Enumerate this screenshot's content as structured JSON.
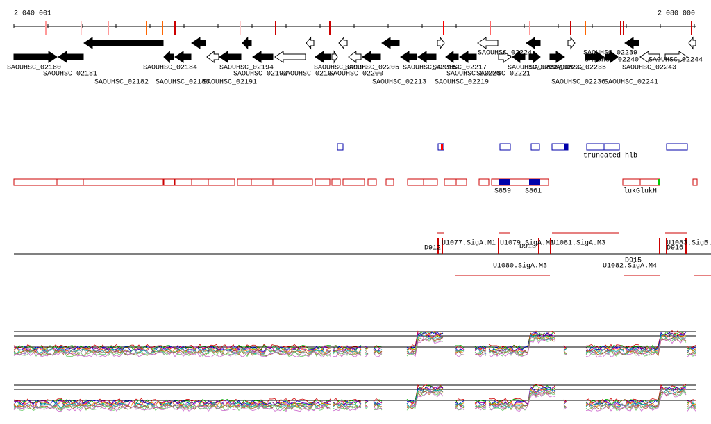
{
  "axis": {
    "start": "2 040 001",
    "end": "2 080 000"
  },
  "genes": [
    "SAOUHSC_02180",
    "SAOUHSC_02184",
    "SAOUHSC_02194",
    "SAOUHSC_02199",
    "SAOUHSC_02205",
    "SAOUHSC_02215",
    "SAOUHSC_02217",
    "SAOUHSC_02227",
    "SAOUHSC_02235",
    "SAOUHSC_02240",
    "SAOUHSC_02244",
    "SAOUHSC_02181",
    "SAOUHSC_02193",
    "SAOUHSC_02197",
    "SAOUHSC_02200",
    "SAOUHSC_02220",
    "SAOUHSC_02221",
    "SAOUHSC_02232",
    "SAOUHSC_02243",
    "SAOUHSC_02182",
    "SAOUHSC_02188",
    "SAOUHSC_02191",
    "SAOUHSC_02213",
    "SAOUHSC_02219",
    "SAOUHSC_02236",
    "SAOUHSC_02241",
    "SAOUHSC_02224",
    "SAOUHSC_02239"
  ],
  "features": [
    "truncated-hlb",
    "S859",
    "S861",
    "lukG",
    "lukH"
  ],
  "regulation": [
    "U1077.SigA.M1",
    "U1079.SigA.M3",
    "U1081.SigA.M3",
    "U1083.SigB.",
    "D912",
    "D913",
    "D916",
    "D915",
    "U1080.SigA.M3",
    "U1082.SigA.M4"
  ]
}
